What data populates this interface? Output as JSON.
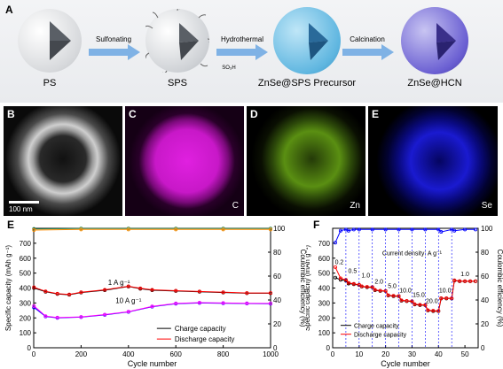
{
  "panel_a": {
    "letter": "A",
    "stages": [
      "PS",
      "SPS",
      "ZnSe@SPS Precursor",
      "ZnSe@HCN"
    ],
    "arrows": [
      "Sulfonating",
      "Hydrothermal",
      "Calcination"
    ],
    "sulfonate_label": "SO₃H"
  },
  "micro_panels": [
    {
      "letter": "B",
      "label": "",
      "scale": "100 nm"
    },
    {
      "letter": "C",
      "label": "C",
      "color": "#e020e0"
    },
    {
      "letter": "D",
      "label": "Zn",
      "color": "#8fd11a"
    },
    {
      "letter": "E",
      "label": "Se",
      "color": "#1a1aff"
    }
  ],
  "chart_data": [
    {
      "panel": "E",
      "type": "line",
      "xlabel": "Cycle number",
      "ylabel": "Specific capacity (mAh g⁻¹)",
      "y2label": "Coulombic efficiency (%)",
      "xlim": [
        0,
        1000
      ],
      "ylim": [
        0,
        800
      ],
      "y2lim": [
        0,
        100
      ],
      "xticks": [
        0,
        200,
        400,
        600,
        800,
        1000
      ],
      "yticks": [
        0,
        100,
        200,
        300,
        400,
        500,
        600,
        700
      ],
      "y2ticks": [
        0,
        20,
        40,
        60,
        80,
        100
      ],
      "annotations": [
        "1 A g⁻¹",
        "10 A g⁻¹"
      ],
      "legend": [
        "Charge capacity",
        "Discharge capacity"
      ],
      "legend_position": "bottom-right",
      "series": [
        {
          "name": "Charge capacity",
          "current": "1 A g⁻¹",
          "color": "#000000",
          "x": [
            1,
            50,
            100,
            150,
            200,
            300,
            400,
            450,
            500,
            600,
            700,
            800,
            900,
            1000
          ],
          "y": [
            400,
            375,
            360,
            355,
            370,
            385,
            410,
            395,
            385,
            380,
            375,
            370,
            365,
            365
          ]
        },
        {
          "name": "Discharge capacity",
          "current": "1 A g⁻¹",
          "color": "#ff0000",
          "x": [
            1,
            50,
            100,
            150,
            200,
            300,
            400,
            450,
            500,
            600,
            700,
            800,
            900,
            1000
          ],
          "y": [
            405,
            378,
            362,
            357,
            372,
            388,
            412,
            398,
            388,
            382,
            377,
            372,
            367,
            367
          ]
        },
        {
          "name": "Charge capacity",
          "current": "10 A g⁻¹",
          "color": "#0000ff",
          "x": [
            1,
            50,
            100,
            200,
            300,
            400,
            500,
            600,
            700,
            800,
            900,
            1000
          ],
          "y": [
            270,
            210,
            200,
            205,
            220,
            240,
            275,
            295,
            300,
            298,
            296,
            295
          ]
        },
        {
          "name": "Discharge capacity",
          "current": "10 A g⁻¹",
          "color": "#ff00ff",
          "x": [
            1,
            50,
            100,
            200,
            300,
            400,
            500,
            600,
            700,
            800,
            900,
            1000
          ],
          "y": [
            280,
            212,
            202,
            207,
            222,
            242,
            277,
            297,
            302,
            300,
            298,
            297
          ]
        },
        {
          "name": "Coulombic efficiency",
          "current": "1 A g⁻¹",
          "axis": "right",
          "color": "#2e8b57",
          "x": [
            1,
            200,
            400,
            600,
            800,
            1000
          ],
          "y": [
            99.5,
            99.8,
            99.8,
            99.8,
            99.8,
            99.8
          ]
        },
        {
          "name": "Coulombic efficiency",
          "current": "10 A g⁻¹",
          "axis": "right",
          "color": "#ff8c00",
          "x": [
            1,
            200,
            400,
            600,
            800,
            1000
          ],
          "y": [
            98.5,
            99.0,
            99.0,
            99.0,
            99.0,
            99.0
          ]
        }
      ]
    },
    {
      "panel": "F",
      "type": "line",
      "xlabel": "Cycle number",
      "ylabel": "Specific capacity (mAh g⁻¹)",
      "y2label": "Coulombic efficiency (%)",
      "xlim": [
        0,
        55
      ],
      "ylim": [
        0,
        800
      ],
      "y2lim": [
        0,
        100
      ],
      "xticks": [
        0,
        10,
        20,
        30,
        40,
        50
      ],
      "yticks": [
        0,
        100,
        200,
        300,
        400,
        500,
        600,
        700
      ],
      "y2ticks": [
        0,
        20,
        40,
        60,
        80,
        100
      ],
      "annotation": "Current density: A g⁻¹",
      "rate_labels": [
        "0.2",
        "0.5",
        "1.0",
        "2.0",
        "5.0",
        "10.0",
        "15.0",
        "20.0",
        "10.0",
        "1.0"
      ],
      "legend": [
        "Charge capacity",
        "Discharge capacity"
      ],
      "legend_position": "bottom-left",
      "series": [
        {
          "name": "Charge capacity",
          "color": "#000000",
          "x": [
            1,
            3,
            5,
            6,
            8,
            10,
            11,
            13,
            15,
            16,
            18,
            20,
            21,
            23,
            25,
            26,
            28,
            30,
            31,
            33,
            35,
            36,
            38,
            40,
            41,
            43,
            45,
            46,
            48,
            50,
            52,
            54
          ],
          "y": [
            470,
            455,
            450,
            430,
            425,
            420,
            410,
            405,
            405,
            385,
            380,
            380,
            350,
            345,
            345,
            315,
            312,
            310,
            290,
            285,
            285,
            250,
            245,
            245,
            330,
            330,
            330,
            450,
            445,
            445,
            445,
            445
          ]
        },
        {
          "name": "Discharge capacity",
          "color": "#ff0000",
          "x": [
            1,
            3,
            5,
            6,
            8,
            10,
            11,
            13,
            15,
            16,
            18,
            20,
            21,
            23,
            25,
            26,
            28,
            30,
            31,
            33,
            35,
            36,
            38,
            40,
            41,
            43,
            45,
            46,
            48,
            50,
            52,
            54
          ],
          "y": [
            540,
            465,
            455,
            435,
            428,
            422,
            412,
            408,
            407,
            388,
            382,
            381,
            352,
            348,
            347,
            318,
            314,
            312,
            292,
            288,
            287,
            252,
            248,
            247,
            332,
            332,
            331,
            452,
            447,
            446,
            446,
            446
          ]
        },
        {
          "name": "Coulombic efficiency",
          "axis": "right",
          "color": "#0000ff",
          "x": [
            1,
            3,
            5,
            6,
            8,
            10,
            15,
            20,
            25,
            30,
            35,
            40,
            41,
            45,
            46,
            50,
            54
          ],
          "y": [
            88,
            98,
            99,
            98,
            99,
            99,
            99,
            99,
            99,
            99,
            99,
            99,
            97,
            99,
            98,
            99,
            99
          ]
        }
      ]
    }
  ]
}
